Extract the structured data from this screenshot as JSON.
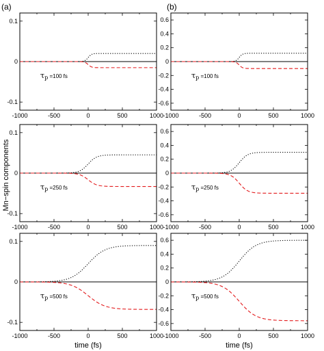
{
  "figure": {
    "ylabel": "Mn−spin components",
    "xlabel": "time (fs)",
    "column_labels": [
      "(a)",
      "(b)"
    ]
  },
  "chart_data": [
    {
      "type": "line",
      "column": "(a)",
      "annotation": "=100 fs",
      "tau_symbol": "τ",
      "tau_sub": "p",
      "xlim": [
        -1000,
        1000
      ],
      "ylim": [
        -0.12,
        0.12
      ],
      "x_ticks": [
        -1000,
        -500,
        0,
        500,
        1000
      ],
      "y_ticks": [
        -0.1,
        0,
        0.1
      ],
      "x_tick_labels": [
        "-1000",
        "-500",
        "0",
        "500",
        "1000"
      ],
      "y_tick_labels": [
        "-0.1",
        "0",
        "0.1"
      ],
      "show_xlabel": false,
      "series": [
        {
          "style": "dotted",
          "color": "#000000",
          "final": 0.02,
          "center": 0,
          "width": 100
        },
        {
          "style": "dashed",
          "color": "#e31a1c",
          "final": -0.015,
          "center": 0,
          "width": 100
        }
      ]
    },
    {
      "type": "line",
      "column": "(b)",
      "annotation": "=100 fs",
      "tau_symbol": "τ",
      "tau_sub": "p",
      "xlim": [
        -1000,
        1000
      ],
      "ylim": [
        -0.7,
        0.7
      ],
      "x_ticks": [
        -1000,
        -500,
        0,
        500,
        1000
      ],
      "y_ticks": [
        -0.6,
        -0.4,
        -0.2,
        0,
        0.2,
        0.4,
        0.6
      ],
      "x_tick_labels": [
        "-1000",
        "-500",
        "0",
        "500",
        "1000"
      ],
      "y_tick_labels": [
        "-0.6",
        "-0.4",
        "-0.2",
        "0",
        "0.2",
        "0.4",
        "0.6"
      ],
      "show_xlabel": false,
      "series": [
        {
          "style": "dotted",
          "color": "#000000",
          "final": 0.12,
          "center": 0,
          "width": 100
        },
        {
          "style": "dashed",
          "color": "#e31a1c",
          "final": -0.1,
          "center": 0,
          "width": 100
        }
      ]
    },
    {
      "type": "line",
      "column": "(a)",
      "annotation": "=250 fs",
      "tau_symbol": "τ",
      "tau_sub": "p",
      "xlim": [
        -1000,
        1000
      ],
      "ylim": [
        -0.12,
        0.12
      ],
      "x_ticks": [
        -1000,
        -500,
        0,
        500,
        1000
      ],
      "y_ticks": [
        -0.1,
        0,
        0.1
      ],
      "x_tick_labels": [
        "-1000",
        "-500",
        "0",
        "500",
        "1000"
      ],
      "y_tick_labels": [
        "-0.1",
        "0",
        "0.1"
      ],
      "show_xlabel": false,
      "series": [
        {
          "style": "dotted",
          "color": "#000000",
          "final": 0.045,
          "center": 0,
          "width": 250
        },
        {
          "style": "dashed",
          "color": "#e31a1c",
          "final": -0.033,
          "center": 0,
          "width": 250
        }
      ]
    },
    {
      "type": "line",
      "column": "(b)",
      "annotation": "=250 fs",
      "tau_symbol": "τ",
      "tau_sub": "p",
      "xlim": [
        -1000,
        1000
      ],
      "ylim": [
        -0.7,
        0.7
      ],
      "x_ticks": [
        -1000,
        -500,
        0,
        500,
        1000
      ],
      "y_ticks": [
        -0.6,
        -0.4,
        -0.2,
        0,
        0.2,
        0.4,
        0.6
      ],
      "x_tick_labels": [
        "-1000",
        "-500",
        "0",
        "500",
        "1000"
      ],
      "y_tick_labels": [
        "-0.6",
        "-0.4",
        "-0.2",
        "0",
        "0.2",
        "0.4",
        "0.6"
      ],
      "show_xlabel": false,
      "series": [
        {
          "style": "dotted",
          "color": "#000000",
          "final": 0.3,
          "center": 0,
          "width": 250
        },
        {
          "style": "dashed",
          "color": "#e31a1c",
          "final": -0.29,
          "center": 0,
          "width": 250
        }
      ]
    },
    {
      "type": "line",
      "column": "(a)",
      "annotation": "=500 fs",
      "tau_symbol": "τ",
      "tau_sub": "p",
      "xlim": [
        -1000,
        1000
      ],
      "ylim": [
        -0.12,
        0.12
      ],
      "x_ticks": [
        -1000,
        -500,
        0,
        500,
        1000
      ],
      "y_ticks": [
        -0.1,
        0,
        0.1
      ],
      "x_tick_labels": [
        "-1000",
        "-500",
        "0",
        "500",
        "1000"
      ],
      "y_tick_labels": [
        "-0.1",
        "0",
        "0.1"
      ],
      "show_xlabel": true,
      "series": [
        {
          "style": "dotted",
          "color": "#000000",
          "final": 0.09,
          "center": 0,
          "width": 500
        },
        {
          "style": "dashed",
          "color": "#e31a1c",
          "final": -0.068,
          "center": 0,
          "width": 500
        }
      ]
    },
    {
      "type": "line",
      "column": "(b)",
      "annotation": "=500 fs",
      "tau_symbol": "τ",
      "tau_sub": "p",
      "xlim": [
        -1000,
        1000
      ],
      "ylim": [
        -0.7,
        0.7
      ],
      "x_ticks": [
        -1000,
        -500,
        0,
        500,
        1000
      ],
      "y_ticks": [
        -0.6,
        -0.4,
        -0.2,
        0,
        0.2,
        0.4,
        0.6
      ],
      "x_tick_labels": [
        "-1000",
        "-500",
        "0",
        "500",
        "1000"
      ],
      "y_tick_labels": [
        "-0.6",
        "-0.4",
        "-0.2",
        "0",
        "0.2",
        "0.4",
        "0.6"
      ],
      "show_xlabel": true,
      "series": [
        {
          "style": "dotted",
          "color": "#000000",
          "final": 0.6,
          "center": 0,
          "width": 500
        },
        {
          "style": "dashed",
          "color": "#e31a1c",
          "final": -0.56,
          "center": 0,
          "width": 500
        }
      ]
    }
  ]
}
